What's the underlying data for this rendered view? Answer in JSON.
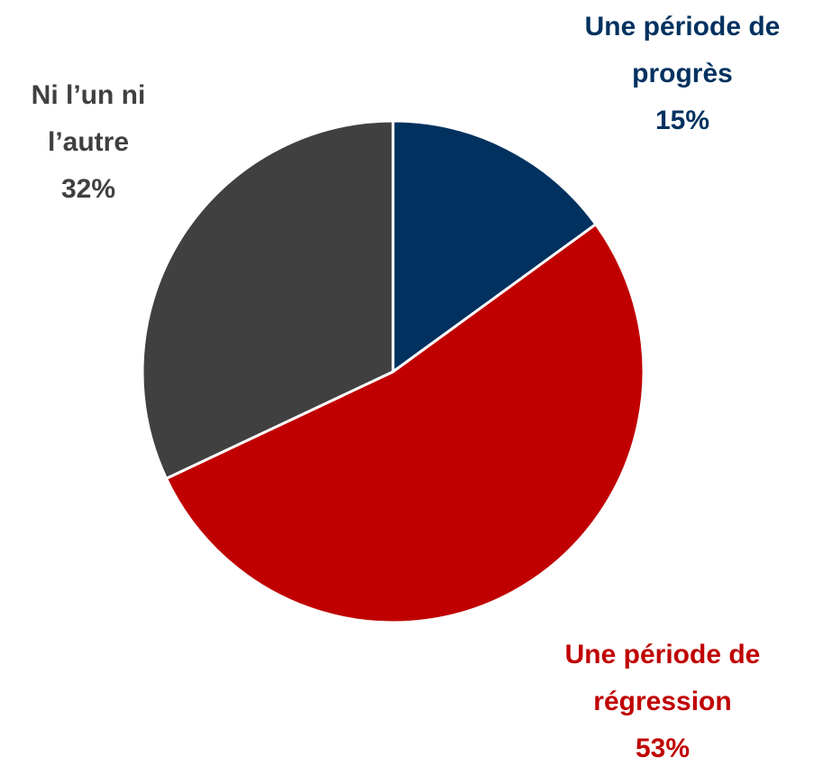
{
  "chart_data": {
    "type": "pie",
    "categories": [
      "Une période de progrès",
      "Une période de régression",
      "Ni l’un ni l’autre"
    ],
    "values": [
      15,
      53,
      32
    ],
    "value_labels": [
      "15%",
      "53%",
      "32%"
    ],
    "colors": [
      "#00315f",
      "#c00000",
      "#404040"
    ]
  }
}
